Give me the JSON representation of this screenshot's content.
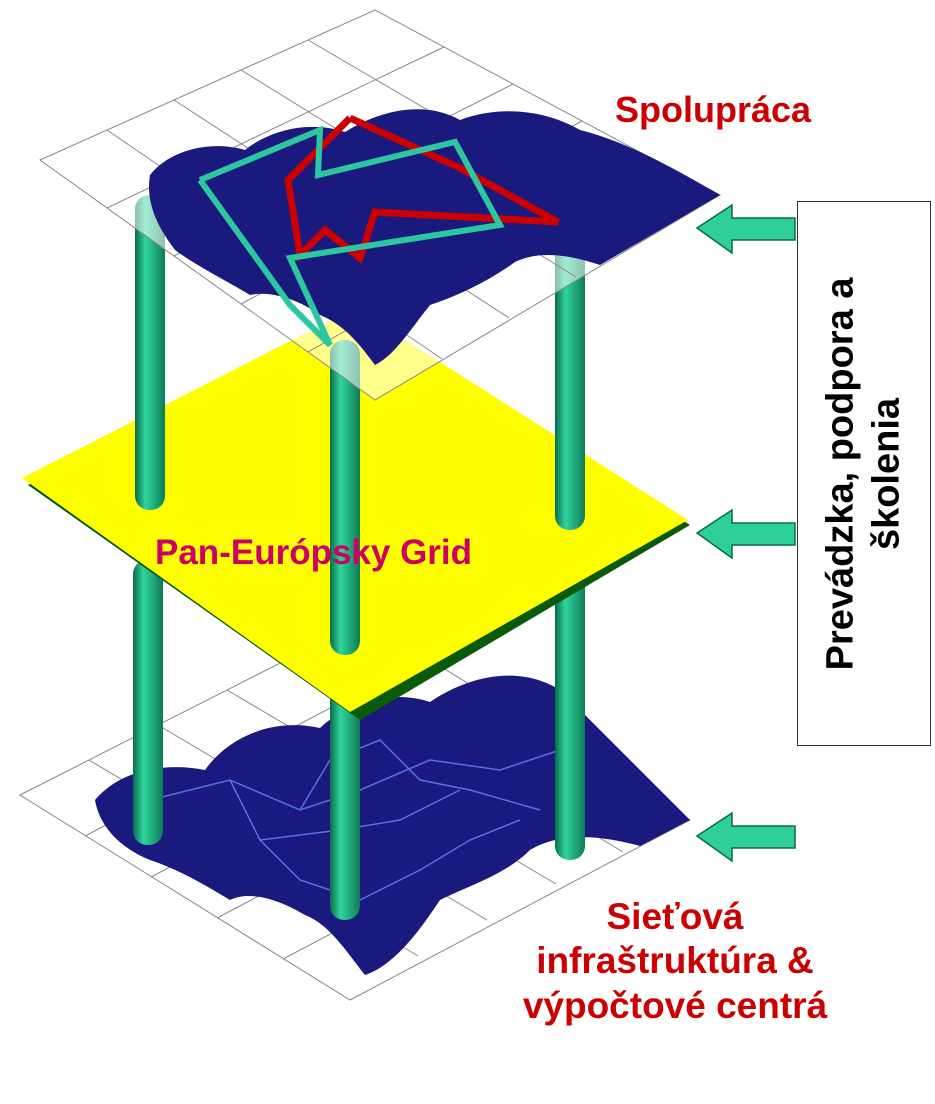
{
  "layers": {
    "top_label": "Spolupráca",
    "middle_label": "Pan-Európsky Grid",
    "bottom_label": "Sieťová infraštruktúra & výpočtové centrá"
  },
  "side_box": {
    "label": "Prevádzka, podpora a školenia"
  },
  "colors": {
    "map": "#1a1a7e",
    "grid_plane": "#ffff00",
    "pillar": "#1fa67a",
    "arrow": "#2ecf9a",
    "red_path": "#cc0000",
    "teal_path": "#2cc7a0",
    "label_red": "#cc0000",
    "label_magenta": "#cc0066"
  },
  "icons": [
    "arrow-left-icon",
    "pillar-icon",
    "europe-map-icon"
  ]
}
